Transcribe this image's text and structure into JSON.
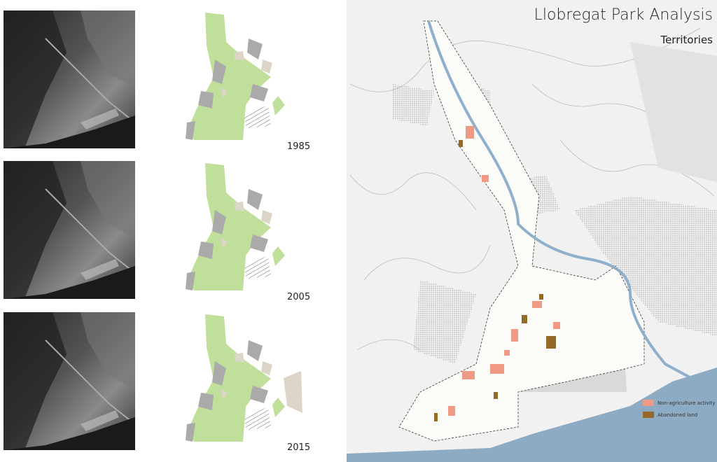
{
  "header": {
    "title": "Llobregat Park Analysis",
    "subtitle": "Territories"
  },
  "panels": [
    {
      "year": "1985"
    },
    {
      "year": "2005"
    },
    {
      "year": "2015"
    }
  ],
  "legend": [
    {
      "label": "Non-agriculture activity"
    },
    {
      "label": "Abandoned land"
    }
  ]
}
